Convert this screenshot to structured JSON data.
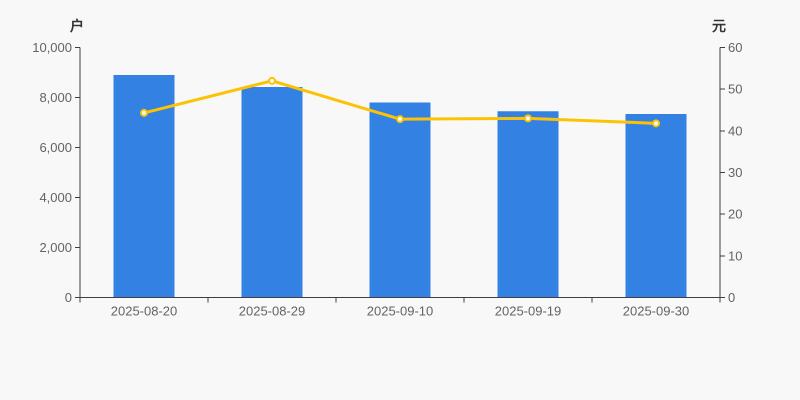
{
  "chart_data": {
    "type": "bar+line",
    "title": "",
    "legend": "none",
    "grid": false,
    "background": "#f8f8f8",
    "categories": [
      "2025-08-20",
      "2025-08-29",
      "2025-09-10",
      "2025-09-19",
      "2025-09-30"
    ],
    "series": [
      {
        "name": "bar-series",
        "type": "bar",
        "axis": "left",
        "unit": "户",
        "values": [
          8900,
          8420,
          7800,
          7450,
          7340
        ],
        "color": "#3381e3"
      },
      {
        "name": "line-series",
        "type": "line",
        "axis": "right",
        "unit": "元",
        "values": [
          44.3,
          52.0,
          42.8,
          43.0,
          41.8
        ],
        "color": "#fcc306",
        "marker": "circle-white-core"
      }
    ],
    "left_axis": {
      "label": "户",
      "min": 0,
      "max": 10000,
      "tick_step": 2000,
      "ticks": [
        "0",
        "2,000",
        "4,000",
        "6,000",
        "8,000",
        "10,000"
      ]
    },
    "right_axis": {
      "label": "元",
      "min": 0,
      "max": 60,
      "tick_step": 10,
      "ticks": [
        "0",
        "10",
        "20",
        "30",
        "40",
        "50",
        "60"
      ]
    }
  },
  "colors": {
    "background": "#f8f8f8",
    "bar": "#3381e3",
    "line": "#fcc306",
    "marker_fill": "#ffffff",
    "axis": "#3f3f3f",
    "tick_text": "#636363",
    "axis_name_text": "#333333"
  }
}
